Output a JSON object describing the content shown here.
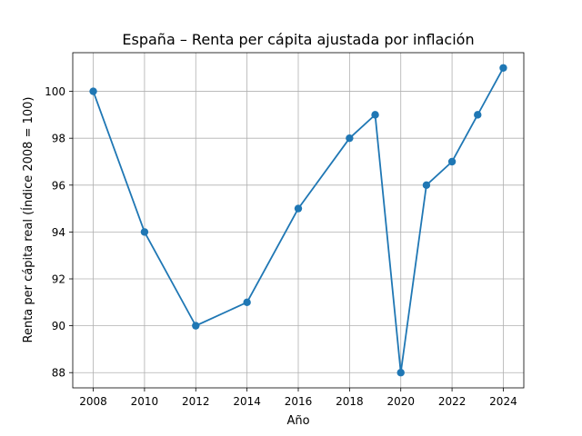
{
  "chart_data": {
    "type": "line",
    "title": "España – Renta per cápita ajustada por inflación",
    "xlabel": "Año",
    "ylabel": "Renta per cápita real (Índice 2008 = 100)",
    "x": [
      2008,
      2010,
      2012,
      2014,
      2016,
      2018,
      2019,
      2020,
      2021,
      2022,
      2023,
      2024
    ],
    "series": [
      {
        "values": [
          100,
          94,
          90,
          91,
          95,
          98,
          99,
          88,
          96,
          97,
          99,
          101
        ],
        "color": "#1f77b4"
      }
    ],
    "xticks": [
      2008,
      2010,
      2012,
      2014,
      2016,
      2018,
      2020,
      2022,
      2024
    ],
    "yticks": [
      88,
      90,
      92,
      94,
      96,
      98,
      100
    ],
    "xlim": [
      2007.2,
      2024.8
    ],
    "ylim": [
      87.35,
      101.65
    ],
    "grid": true,
    "marker": "circle"
  }
}
